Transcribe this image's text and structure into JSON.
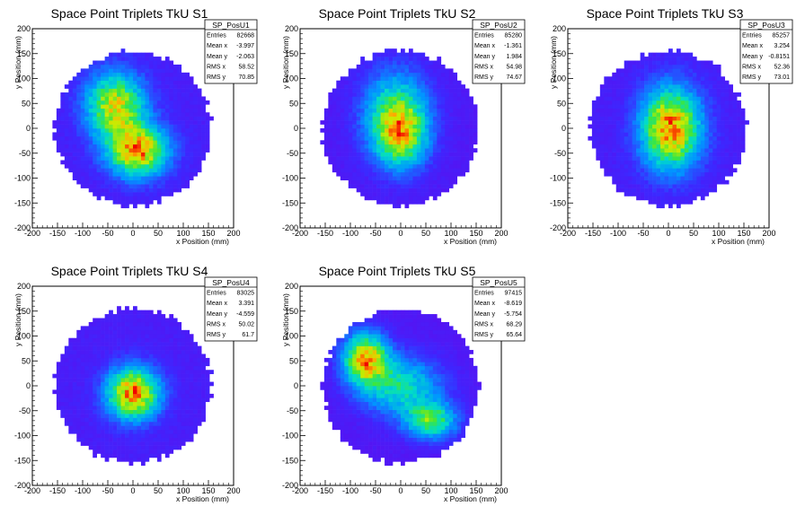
{
  "chart_data": [
    {
      "type": "heatmap",
      "title": "Space Point Triplets TkU S1",
      "xlabel": "x Position (mm)",
      "ylabel": "y Position (mm)",
      "xlim": [
        -200,
        200
      ],
      "ylim": [
        -200,
        200
      ],
      "xticks": [
        "-200",
        "-150",
        "-100",
        "-50",
        "0",
        "50",
        "100",
        "150",
        "200"
      ],
      "yticks": [
        "-200",
        "-150",
        "-100",
        "-50",
        "0",
        "50",
        "100",
        "150",
        "200"
      ],
      "radius": 155,
      "blobs": [
        {
          "x": -35,
          "y": 45,
          "sx": 40,
          "sy": 45,
          "w": 0.85
        },
        {
          "x": 10,
          "y": -45,
          "sx": 40,
          "sy": 35,
          "w": 1.0
        }
      ],
      "bg": 0.15,
      "stats": {
        "name": "SP_PosU1",
        "rows": [
          {
            "label": "Entries",
            "value": "82668"
          },
          {
            "label": "Mean x",
            "value": "-3.997"
          },
          {
            "label": "Mean y",
            "value": "-2.063"
          },
          {
            "label": "RMS x",
            "value": "58.52"
          },
          {
            "label": "RMS y",
            "value": "70.85"
          }
        ]
      }
    },
    {
      "type": "heatmap",
      "title": "Space Point Triplets TkU S2",
      "xlabel": "x Position (mm)",
      "ylabel": "y Position (mm)",
      "xlim": [
        -200,
        200
      ],
      "ylim": [
        -200,
        200
      ],
      "xticks": [
        "-200",
        "-150",
        "-100",
        "-50",
        "0",
        "50",
        "100",
        "150",
        "200"
      ],
      "yticks": [
        "-200",
        "-150",
        "-100",
        "-50",
        "0",
        "50",
        "100",
        "150",
        "200"
      ],
      "radius": 155,
      "blobs": [
        {
          "x": -10,
          "y": 30,
          "sx": 45,
          "sy": 60,
          "w": 0.8
        },
        {
          "x": 0,
          "y": -15,
          "sx": 35,
          "sy": 45,
          "w": 0.9
        }
      ],
      "bg": 0.18,
      "stats": {
        "name": "SP_PosU2",
        "rows": [
          {
            "label": "Entries",
            "value": "85280"
          },
          {
            "label": "Mean x",
            "value": "-1.361"
          },
          {
            "label": "Mean y",
            "value": "1.984"
          },
          {
            "label": "RMS x",
            "value": "54.98"
          },
          {
            "label": "RMS y",
            "value": "74.67"
          }
        ]
      }
    },
    {
      "type": "heatmap",
      "title": "Space Point Triplets TkU S3",
      "xlabel": "x Position (mm)",
      "ylabel": "y Position (mm)",
      "xlim": [
        -200,
        200
      ],
      "ylim": [
        -200,
        200
      ],
      "xticks": [
        "-200",
        "-150",
        "-100",
        "-50",
        "0",
        "50",
        "100",
        "150",
        "200"
      ],
      "yticks": [
        "-200",
        "-150",
        "-100",
        "-50",
        "0",
        "50",
        "100",
        "150",
        "200"
      ],
      "radius": 155,
      "blobs": [
        {
          "x": 5,
          "y": 0,
          "sx": 40,
          "sy": 55,
          "w": 1.0
        }
      ],
      "bg": 0.14,
      "stats": {
        "name": "SP_PosU3",
        "rows": [
          {
            "label": "Entries",
            "value": "85257"
          },
          {
            "label": "Mean x",
            "value": "3.254"
          },
          {
            "label": "Mean y",
            "value": "-0.8151"
          },
          {
            "label": "RMS x",
            "value": "52.36"
          },
          {
            "label": "RMS y",
            "value": "73.01"
          }
        ]
      }
    },
    {
      "type": "heatmap",
      "title": "Space Point Triplets TkU S4",
      "xlabel": "x Position (mm)",
      "ylabel": "y Position (mm)",
      "xlim": [
        -200,
        200
      ],
      "ylim": [
        -200,
        200
      ],
      "xticks": [
        "-200",
        "-150",
        "-100",
        "-50",
        "0",
        "50",
        "100",
        "150",
        "200"
      ],
      "yticks": [
        "-200",
        "-150",
        "-100",
        "-50",
        "0",
        "50",
        "100",
        "150",
        "200"
      ],
      "radius": 155,
      "blobs": [
        {
          "x": 0,
          "y": -15,
          "sx": 35,
          "sy": 35,
          "w": 1.0
        }
      ],
      "bg": 0.14,
      "stats": {
        "name": "SP_PosU4",
        "rows": [
          {
            "label": "Entries",
            "value": "83025"
          },
          {
            "label": "Mean x",
            "value": "3.391"
          },
          {
            "label": "Mean y",
            "value": "-4.559"
          },
          {
            "label": "RMS x",
            "value": "50.02"
          },
          {
            "label": "RMS y",
            "value": "61.7"
          }
        ]
      }
    },
    {
      "type": "heatmap",
      "title": "Space Point Triplets TkU S5",
      "xlabel": "x Position (mm)",
      "ylabel": "y Position (mm)",
      "xlim": [
        -200,
        200
      ],
      "ylim": [
        -200,
        200
      ],
      "xticks": [
        "-200",
        "-150",
        "-100",
        "-50",
        "0",
        "50",
        "100",
        "150",
        "200"
      ],
      "yticks": [
        "-200",
        "-150",
        "-100",
        "-50",
        "0",
        "50",
        "100",
        "150",
        "200"
      ],
      "radius": 155,
      "blobs": [
        {
          "x": -70,
          "y": 55,
          "sx": 30,
          "sy": 35,
          "w": 1.0
        },
        {
          "x": 0,
          "y": 0,
          "sx": 55,
          "sy": 40,
          "w": 0.55
        },
        {
          "x": 60,
          "y": -70,
          "sx": 35,
          "sy": 25,
          "w": 0.7
        }
      ],
      "bg": 0.12,
      "stats": {
        "name": "SP_PosU5",
        "rows": [
          {
            "label": "Entries",
            "value": "97415"
          },
          {
            "label": "Mean x",
            "value": "-8.619"
          },
          {
            "label": "Mean y",
            "value": "-5.754"
          },
          {
            "label": "RMS x",
            "value": "68.29"
          },
          {
            "label": "RMS y",
            "value": "65.64"
          }
        ]
      }
    }
  ]
}
